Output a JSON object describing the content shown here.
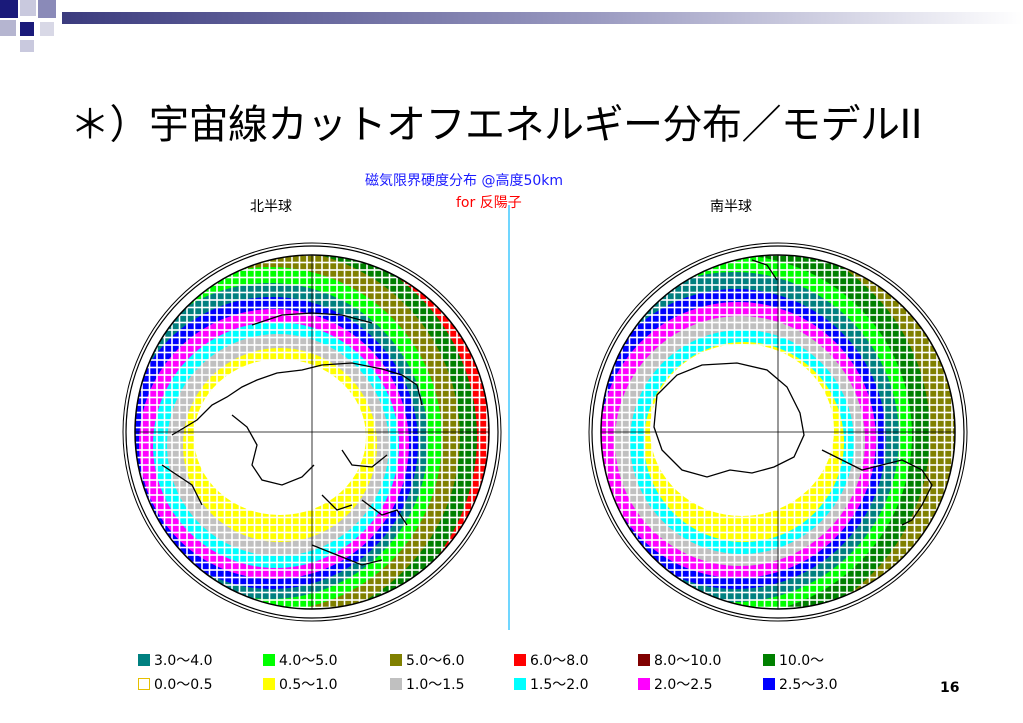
{
  "slide": {
    "title": "＊）宇宙線カットオフエネルギー分布／モデルII",
    "page_number": "16"
  },
  "figure": {
    "title": "磁気限界硬度分布 @高度50km",
    "subtitle": "for 反陽子",
    "north_label": "北半球",
    "south_label": "南半球"
  },
  "colors": {
    "band_0_0.5": "#ffffff",
    "band_0.5_1.0": "#ffff00",
    "band_1.0_1.5": "#c0c0c0",
    "band_1.5_2.0": "#00ffff",
    "band_2.0_2.5": "#ff00ff",
    "band_2.5_3.0": "#0000ff",
    "band_3.0_4.0": "#008080",
    "band_4.0_5.0": "#00ff00",
    "band_5.0_6.0": "#808000",
    "band_6.0_8.0": "#ff0000",
    "band_8.0_10.0": "#800000",
    "band_10.0_plus": "#008000"
  },
  "legend": {
    "row1": [
      {
        "label": "3.0～4.0",
        "color": "#008080"
      },
      {
        "label": "4.0～5.0",
        "color": "#00ff00"
      },
      {
        "label": "5.0～6.0",
        "color": "#808000"
      },
      {
        "label": "6.0～8.0",
        "color": "#ff0000"
      },
      {
        "label": "8.0～10.0",
        "color": "#800000"
      },
      {
        "label": "10.0～",
        "color": "#008000"
      }
    ],
    "row2": [
      {
        "label": "0.0～0.5",
        "color": "#ffffff"
      },
      {
        "label": "0.5～1.0",
        "color": "#ffff00"
      },
      {
        "label": "1.0～1.5",
        "color": "#c0c0c0"
      },
      {
        "label": "1.5～2.0",
        "color": "#00ffff"
      },
      {
        "label": "2.0～2.5",
        "color": "#ff00ff"
      },
      {
        "label": "2.5～3.0",
        "color": "#0000ff"
      }
    ]
  }
}
